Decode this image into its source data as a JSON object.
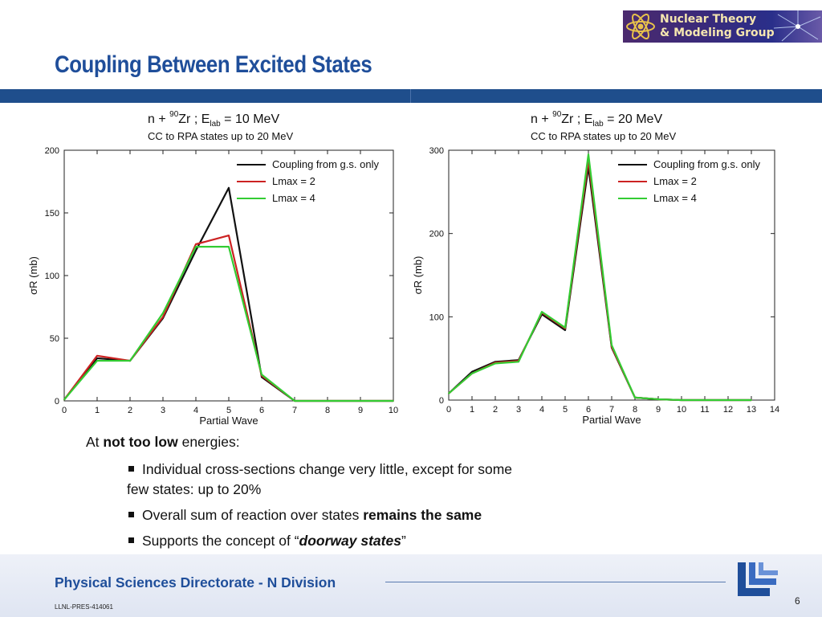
{
  "logo": {
    "line1": "Nuclear Theory",
    "line2": "& Modeling Group"
  },
  "slide_title": "Coupling Between Excited States",
  "chart_data": [
    {
      "type": "line",
      "title_reaction": "n + ⁹⁰Zr ;  E_lab = 10 MeV",
      "title_parts": {
        "n": "n +",
        "mass": "90",
        "nucleus": "Zr ;",
        "E": "E",
        "sub": "lab",
        "eq": "= 10 MeV"
      },
      "subtitle": "CC to RPA states up to 20 MeV",
      "xlabel": "Partial Wave",
      "ylabel": "σR (mb)",
      "xlim": [
        0,
        10
      ],
      "ylim": [
        0,
        200
      ],
      "xticks": [
        0,
        1,
        2,
        3,
        4,
        5,
        6,
        7,
        8,
        9,
        10
      ],
      "yticks": [
        0,
        50,
        100,
        150,
        200
      ],
      "legend_position": "top-right",
      "series": [
        {
          "name": "Coupling from g.s. only",
          "color": "#111111",
          "x": [
            0,
            1,
            2,
            3,
            4,
            5,
            6,
            7,
            8,
            9,
            10
          ],
          "values": [
            1,
            34,
            32,
            66,
            120,
            170,
            19,
            0,
            0,
            0,
            0
          ]
        },
        {
          "name": "Lmax = 2",
          "color": "#cc2222",
          "x": [
            0,
            1,
            2,
            3,
            4,
            5,
            6,
            7,
            8,
            9,
            10
          ],
          "values": [
            1,
            36,
            32,
            67,
            125,
            132,
            20,
            0,
            0,
            0,
            0
          ]
        },
        {
          "name": "Lmax = 4",
          "color": "#33cc33",
          "x": [
            0,
            1,
            2,
            3,
            4,
            5,
            6,
            7,
            8,
            9,
            10
          ],
          "values": [
            1,
            32,
            32,
            70,
            123,
            123,
            21,
            0,
            0,
            0,
            0
          ]
        }
      ]
    },
    {
      "type": "line",
      "title_reaction": "n + ⁹⁰Zr ;  E_lab = 20 MeV",
      "title_parts": {
        "n": "n +",
        "mass": "90",
        "nucleus": "Zr ;",
        "E": "E",
        "sub": "lab",
        "eq": "= 20 MeV"
      },
      "subtitle": "CC to RPA states up to 20 MeV",
      "xlabel": "Partial Wave",
      "ylabel": "σR (mb)",
      "xlim": [
        0,
        14
      ],
      "ylim": [
        0,
        300
      ],
      "xticks": [
        0,
        1,
        2,
        3,
        4,
        5,
        6,
        7,
        8,
        9,
        10,
        11,
        12,
        13,
        14
      ],
      "yticks": [
        0,
        100,
        200,
        300
      ],
      "legend_position": "top-right",
      "series": [
        {
          "name": "Coupling from g.s. only",
          "color": "#111111",
          "x": [
            0,
            1,
            2,
            3,
            4,
            5,
            6,
            7,
            8,
            9,
            10,
            11,
            12,
            13
          ],
          "values": [
            8,
            34,
            46,
            48,
            103,
            84,
            280,
            63,
            3,
            1,
            0,
            0,
            0,
            0
          ]
        },
        {
          "name": "Lmax = 2",
          "color": "#cc2222",
          "x": [
            0,
            1,
            2,
            3,
            4,
            5,
            6,
            7,
            8,
            9,
            10,
            11,
            12,
            13
          ],
          "values": [
            8,
            32,
            45,
            47,
            105,
            86,
            288,
            64,
            3,
            1,
            0,
            0,
            0,
            0
          ]
        },
        {
          "name": "Lmax  = 4",
          "color": "#33cc33",
          "x": [
            0,
            1,
            2,
            3,
            4,
            5,
            6,
            7,
            8,
            9,
            10,
            11,
            12,
            13
          ],
          "values": [
            8,
            32,
            44,
            46,
            106,
            87,
            295,
            66,
            3,
            1,
            0,
            0,
            0,
            0
          ]
        }
      ]
    }
  ],
  "bullets": {
    "intro_pre": "At ",
    "intro_bold": "not too low",
    "intro_post": " energies:",
    "b1_line1": "Individual cross-sections change very little, except for some",
    "b1_line2": "few states: up to 20%",
    "b2_pre": "Overall sum of reaction over states ",
    "b2_bold": "remains the same",
    "b3_pre": "Supports the concept of “",
    "b3_bold": "doorway states",
    "b3_post": "”"
  },
  "footer": {
    "title": "Physical Sciences Directorate - N Division",
    "doc_id": "LLNL-PRES-414061",
    "page_number": "6"
  },
  "colors": {
    "title_blue": "#1f4e9a",
    "bar_blue": "#1f4e8c"
  }
}
